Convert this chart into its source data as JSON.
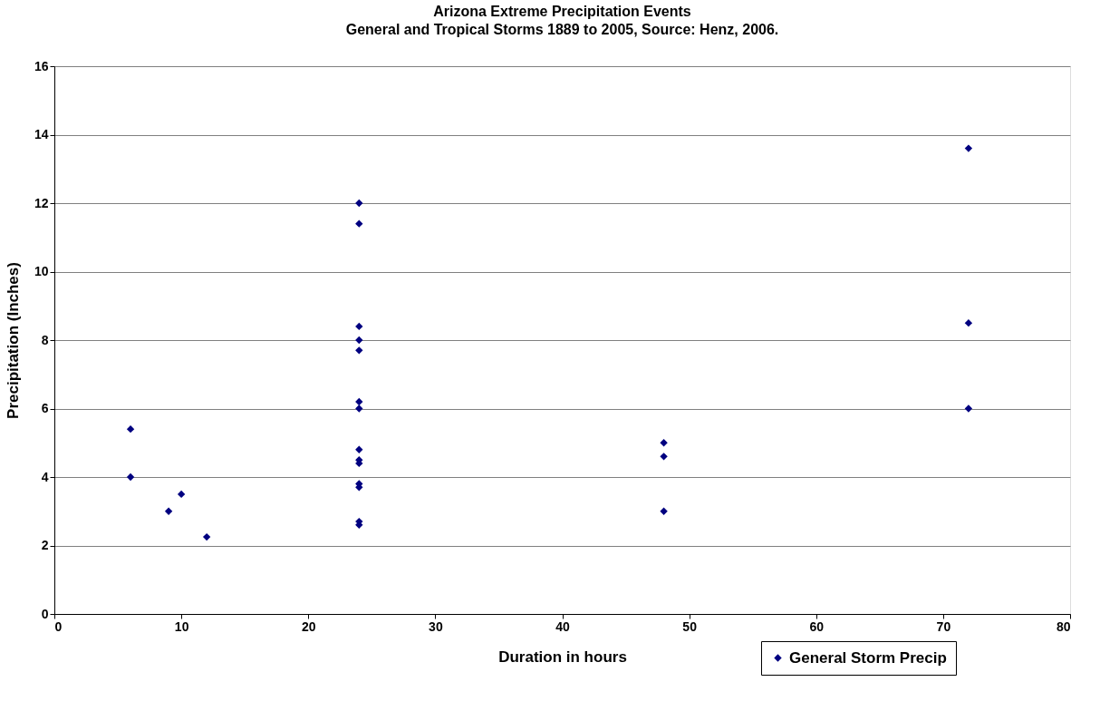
{
  "chart_data": {
    "type": "scatter",
    "title": "Arizona Extreme Precipitation Events",
    "subtitle": "General and Tropical Storms 1889 to 2005, Source: Henz, 2006.",
    "xlabel": "Duration in hours",
    "ylabel": "Precipitation  (Inches)",
    "x": [
      6,
      6,
      9,
      10,
      12,
      24,
      24,
      24,
      24,
      24,
      24,
      24,
      24,
      24,
      24,
      24,
      24,
      24,
      24,
      48,
      48,
      48,
      72,
      72,
      72
    ],
    "series": [
      {
        "name": "General Storm Precip",
        "color": "#000080",
        "values": [
          5.4,
          4.0,
          3.0,
          3.5,
          2.25,
          12.0,
          11.4,
          8.4,
          8.0,
          7.7,
          6.2,
          6.0,
          4.8,
          4.5,
          4.4,
          3.8,
          3.7,
          2.7,
          2.6,
          5.0,
          4.6,
          3.0,
          13.6,
          8.5,
          6.0
        ]
      }
    ],
    "xlim": [
      0,
      80
    ],
    "xticks": [
      0,
      10,
      20,
      30,
      40,
      50,
      60,
      70,
      80
    ],
    "ylim": [
      0,
      16
    ],
    "yticks": [
      0,
      2,
      4,
      6,
      8,
      10,
      12,
      14,
      16
    ],
    "grid": "y",
    "legend": "bottom right",
    "marker": "diamond"
  }
}
